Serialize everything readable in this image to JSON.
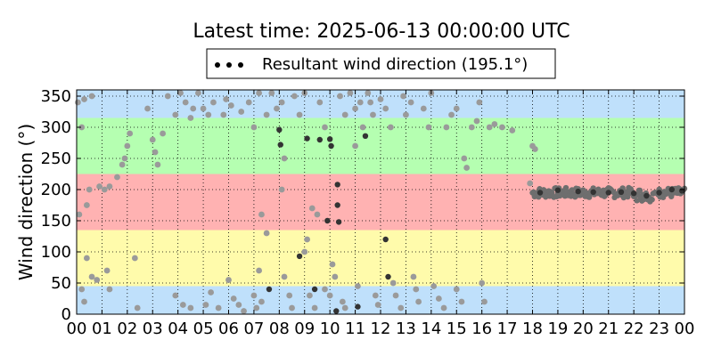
{
  "chart_data": {
    "type": "scatter",
    "title": "Latest time: 2025-06-13 00:00:00 UTC",
    "ylabel": "Wind direction (°)",
    "xlabel": "",
    "xlim": [
      0,
      24
    ],
    "ylim": [
      0,
      360
    ],
    "x_ticks": [
      "00",
      "01",
      "02",
      "03",
      "04",
      "05",
      "06",
      "07",
      "08",
      "09",
      "10",
      "11",
      "12",
      "13",
      "14",
      "15",
      "16",
      "17",
      "18",
      "19",
      "20",
      "21",
      "22",
      "23",
      "00"
    ],
    "y_ticks": [
      0,
      50,
      100,
      150,
      200,
      250,
      300,
      350
    ],
    "grid": true,
    "legend": {
      "position": "top-center",
      "entries": [
        "Resultant wind direction (195.1°)"
      ]
    },
    "bands": [
      {
        "from": 0,
        "to": 45,
        "color": "#bfe0fb"
      },
      {
        "from": 45,
        "to": 135,
        "color": "#fffbab"
      },
      {
        "from": 135,
        "to": 225,
        "color": "#ffb2b2"
      },
      {
        "from": 225,
        "to": 315,
        "color": "#b5ffb1"
      },
      {
        "from": 315,
        "to": 360,
        "color": "#bfe0fb"
      }
    ],
    "series": [
      {
        "name": "Resultant wind direction (195.1°)",
        "color": "#333333",
        "points": [
          [
            8.0,
            296
          ],
          [
            8.05,
            272
          ],
          [
            9.1,
            282
          ],
          [
            9.6,
            280
          ],
          [
            10.0,
            281
          ],
          [
            10.05,
            270
          ],
          [
            10.3,
            208
          ],
          [
            10.3,
            175
          ],
          [
            10.35,
            148
          ],
          [
            11.4,
            286
          ],
          [
            9.9,
            150
          ],
          [
            10.25,
            5
          ],
          [
            11.1,
            12
          ],
          [
            12.2,
            120
          ],
          [
            12.3,
            60
          ],
          [
            8.8,
            93
          ],
          [
            9.4,
            40
          ],
          [
            7.6,
            40
          ],
          [
            18.3,
            195
          ],
          [
            19.0,
            199
          ],
          [
            19.8,
            197
          ],
          [
            20.4,
            196
          ],
          [
            21.0,
            195
          ],
          [
            21.5,
            196
          ],
          [
            22.0,
            194
          ],
          [
            22.5,
            190
          ],
          [
            23.0,
            195
          ],
          [
            23.5,
            200
          ],
          [
            23.9,
            198
          ]
        ]
      },
      {
        "name": "",
        "color": "#9a9a9a",
        "points": [
          [
            0.05,
            340
          ],
          [
            0.3,
            345
          ],
          [
            0.6,
            350
          ],
          [
            0.2,
            300
          ],
          [
            0.4,
            175
          ],
          [
            0.1,
            160
          ],
          [
            0.5,
            200
          ],
          [
            0.2,
            40
          ],
          [
            0.4,
            90
          ],
          [
            0.6,
            60
          ],
          [
            0.8,
            55
          ],
          [
            0.3,
            20
          ],
          [
            0.9,
            205
          ],
          [
            1.1,
            200
          ],
          [
            1.3,
            205
          ],
          [
            1.2,
            70
          ],
          [
            1.3,
            40
          ],
          [
            1.8,
            240
          ],
          [
            1.6,
            220
          ],
          [
            1.9,
            250
          ],
          [
            2.1,
            290
          ],
          [
            2.0,
            270
          ],
          [
            2.3,
            90
          ],
          [
            2.4,
            10
          ],
          [
            2.8,
            330
          ],
          [
            3.0,
            280
          ],
          [
            3.1,
            260
          ],
          [
            3.2,
            240
          ],
          [
            3.4,
            290
          ],
          [
            3.6,
            350
          ],
          [
            3.9,
            320
          ],
          [
            3.9,
            30
          ],
          [
            4.1,
            355
          ],
          [
            4.3,
            340
          ],
          [
            4.5,
            315
          ],
          [
            4.6,
            330
          ],
          [
            4.2,
            15
          ],
          [
            4.5,
            10
          ],
          [
            4.8,
            355
          ],
          [
            5.0,
            330
          ],
          [
            5.2,
            320
          ],
          [
            5.4,
            340
          ],
          [
            5.1,
            15
          ],
          [
            5.3,
            35
          ],
          [
            5.6,
            10
          ],
          [
            5.8,
            320
          ],
          [
            5.9,
            345
          ],
          [
            6.1,
            335
          ],
          [
            6.0,
            55
          ],
          [
            6.2,
            25
          ],
          [
            6.4,
            15
          ],
          [
            6.6,
            5
          ],
          [
            6.5,
            325
          ],
          [
            6.8,
            340
          ],
          [
            7.0,
            300
          ],
          [
            7.2,
            355
          ],
          [
            7.5,
            320
          ],
          [
            7.2,
            70
          ],
          [
            7.3,
            160
          ],
          [
            7.5,
            130
          ],
          [
            7.0,
            30
          ],
          [
            7.1,
            10
          ],
          [
            7.3,
            20
          ],
          [
            7.7,
            355
          ],
          [
            7.9,
            330
          ],
          [
            8.1,
            340
          ],
          [
            8.2,
            250
          ],
          [
            8.1,
            200
          ],
          [
            8.2,
            60
          ],
          [
            8.4,
            30
          ],
          [
            8.5,
            10
          ],
          [
            8.6,
            350
          ],
          [
            8.8,
            320
          ],
          [
            9.0,
            355
          ],
          [
            9.0,
            100
          ],
          [
            9.1,
            120
          ],
          [
            9.3,
            170
          ],
          [
            9.5,
            160
          ],
          [
            9.2,
            30
          ],
          [
            9.4,
            10
          ],
          [
            9.6,
            340
          ],
          [
            9.8,
            300
          ],
          [
            9.8,
            40
          ],
          [
            10.0,
            30
          ],
          [
            10.1,
            80
          ],
          [
            10.2,
            60
          ],
          [
            10.4,
            350
          ],
          [
            10.6,
            320
          ],
          [
            10.5,
            20
          ],
          [
            10.6,
            10
          ],
          [
            10.8,
            355
          ],
          [
            11.0,
            330
          ],
          [
            11.0,
            270
          ],
          [
            11.2,
            340
          ],
          [
            11.3,
            300
          ],
          [
            11.1,
            45
          ],
          [
            11.5,
            355
          ],
          [
            11.6,
            340
          ],
          [
            11.7,
            320
          ],
          [
            11.8,
            30
          ],
          [
            11.9,
            15
          ],
          [
            12.0,
            345
          ],
          [
            12.2,
            330
          ],
          [
            12.4,
            300
          ],
          [
            12.5,
            50
          ],
          [
            12.6,
            30
          ],
          [
            12.8,
            10
          ],
          [
            12.9,
            350
          ],
          [
            13.0,
            320
          ],
          [
            13.2,
            340
          ],
          [
            13.3,
            60
          ],
          [
            13.4,
            40
          ],
          [
            13.5,
            20
          ],
          [
            13.7,
            330
          ],
          [
            13.9,
            300
          ],
          [
            14.0,
            355
          ],
          [
            14.1,
            45
          ],
          [
            14.3,
            25
          ],
          [
            14.5,
            10
          ],
          [
            14.6,
            300
          ],
          [
            14.8,
            320
          ],
          [
            15.0,
            330
          ],
          [
            15.0,
            40
          ],
          [
            15.2,
            20
          ],
          [
            15.3,
            250
          ],
          [
            15.4,
            235
          ],
          [
            15.6,
            300
          ],
          [
            15.8,
            310
          ],
          [
            15.9,
            340
          ],
          [
            16.0,
            50
          ],
          [
            16.1,
            20
          ],
          [
            16.3,
            300
          ],
          [
            16.5,
            305
          ],
          [
            16.8,
            300
          ],
          [
            17.2,
            295
          ],
          [
            18.0,
            270
          ],
          [
            18.1,
            265
          ],
          [
            17.9,
            210
          ]
        ]
      }
    ],
    "band_series": {
      "color": "#6e6e6e",
      "x_from": 18.0,
      "x_to": 24.0,
      "center": 195,
      "spread": 8
    }
  }
}
